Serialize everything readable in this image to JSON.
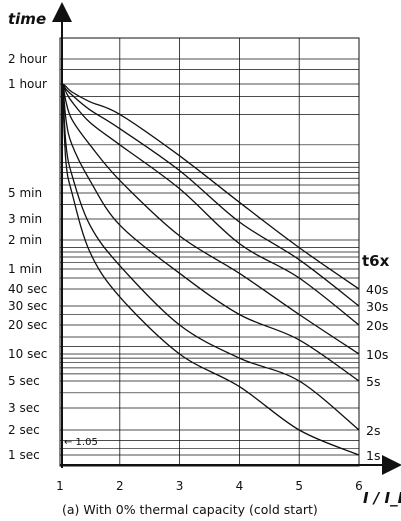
{
  "chart_data": {
    "type": "line",
    "xlabel": "I / I_B",
    "ylabel": "time",
    "xlim": [
      1,
      6
    ],
    "x_ticks": [
      "1",
      "2",
      "3",
      "4",
      "5",
      "6"
    ],
    "y_scale": "log",
    "y_ticks": [
      {
        "label": "2 hour",
        "seconds": 7200
      },
      {
        "label": "1 hour",
        "seconds": 3600
      },
      {
        "label": "5 min",
        "seconds": 300
      },
      {
        "label": "3 min",
        "seconds": 180
      },
      {
        "label": "2 min",
        "seconds": 120
      },
      {
        "label": "1 min",
        "seconds": 60
      },
      {
        "label": "40 sec",
        "seconds": 40
      },
      {
        "label": "30 sec",
        "seconds": 30
      },
      {
        "label": "20 sec",
        "seconds": 20
      },
      {
        "label": "10 sec",
        "seconds": 10
      },
      {
        "label": "5 sec",
        "seconds": 5
      },
      {
        "label": "3 sec",
        "seconds": 3
      },
      {
        "label": "2 sec",
        "seconds": 2
      },
      {
        "label": "1 sec",
        "seconds": 1
      }
    ],
    "legend_title": "t6x",
    "series": [
      {
        "name": "1s",
        "x": [
          1.05,
          1.1,
          1.2,
          1.5,
          2,
          3,
          4,
          5,
          6
        ],
        "y": [
          2400,
          600,
          300,
          90,
          35,
          10,
          4.5,
          2,
          1
        ]
      },
      {
        "name": "2s",
        "x": [
          1.05,
          1.1,
          1.2,
          1.5,
          2,
          3,
          4,
          5,
          6
        ],
        "y": [
          3000,
          900,
          450,
          160,
          65,
          20,
          9,
          5,
          2
        ]
      },
      {
        "name": "5s",
        "x": [
          1.05,
          1.1,
          1.2,
          1.5,
          2,
          3,
          4,
          5,
          6
        ],
        "y": [
          3600,
          1600,
          900,
          400,
          160,
          55,
          25,
          14,
          5
        ]
      },
      {
        "name": "10s",
        "x": [
          1.05,
          1.1,
          1.2,
          1.5,
          2,
          3,
          4,
          5,
          6
        ],
        "y": [
          3600,
          2400,
          1600,
          900,
          400,
          130,
          55,
          25,
          10
        ]
      },
      {
        "name": "20s",
        "x": [
          1.05,
          1.1,
          1.2,
          1.5,
          2,
          3,
          4,
          5,
          6
        ],
        "y": [
          3600,
          3000,
          2400,
          1500,
          900,
          330,
          110,
          50,
          20
        ]
      },
      {
        "name": "30s",
        "x": [
          1.05,
          1.1,
          1.2,
          1.5,
          2,
          3,
          4,
          5,
          6
        ],
        "y": [
          3600,
          3200,
          2800,
          2000,
          1300,
          500,
          170,
          75,
          30
        ]
      },
      {
        "name": "40s",
        "x": [
          1.05,
          1.1,
          1.2,
          1.5,
          2,
          3,
          4,
          5,
          6
        ],
        "y": [
          3600,
          3400,
          3000,
          2400,
          1800,
          700,
          250,
          100,
          40
        ]
      }
    ],
    "annotations": [
      {
        "text": "← 1.05"
      }
    ],
    "caption": "(a) With 0% thermal capacity (cold start)",
    "grid": true
  }
}
